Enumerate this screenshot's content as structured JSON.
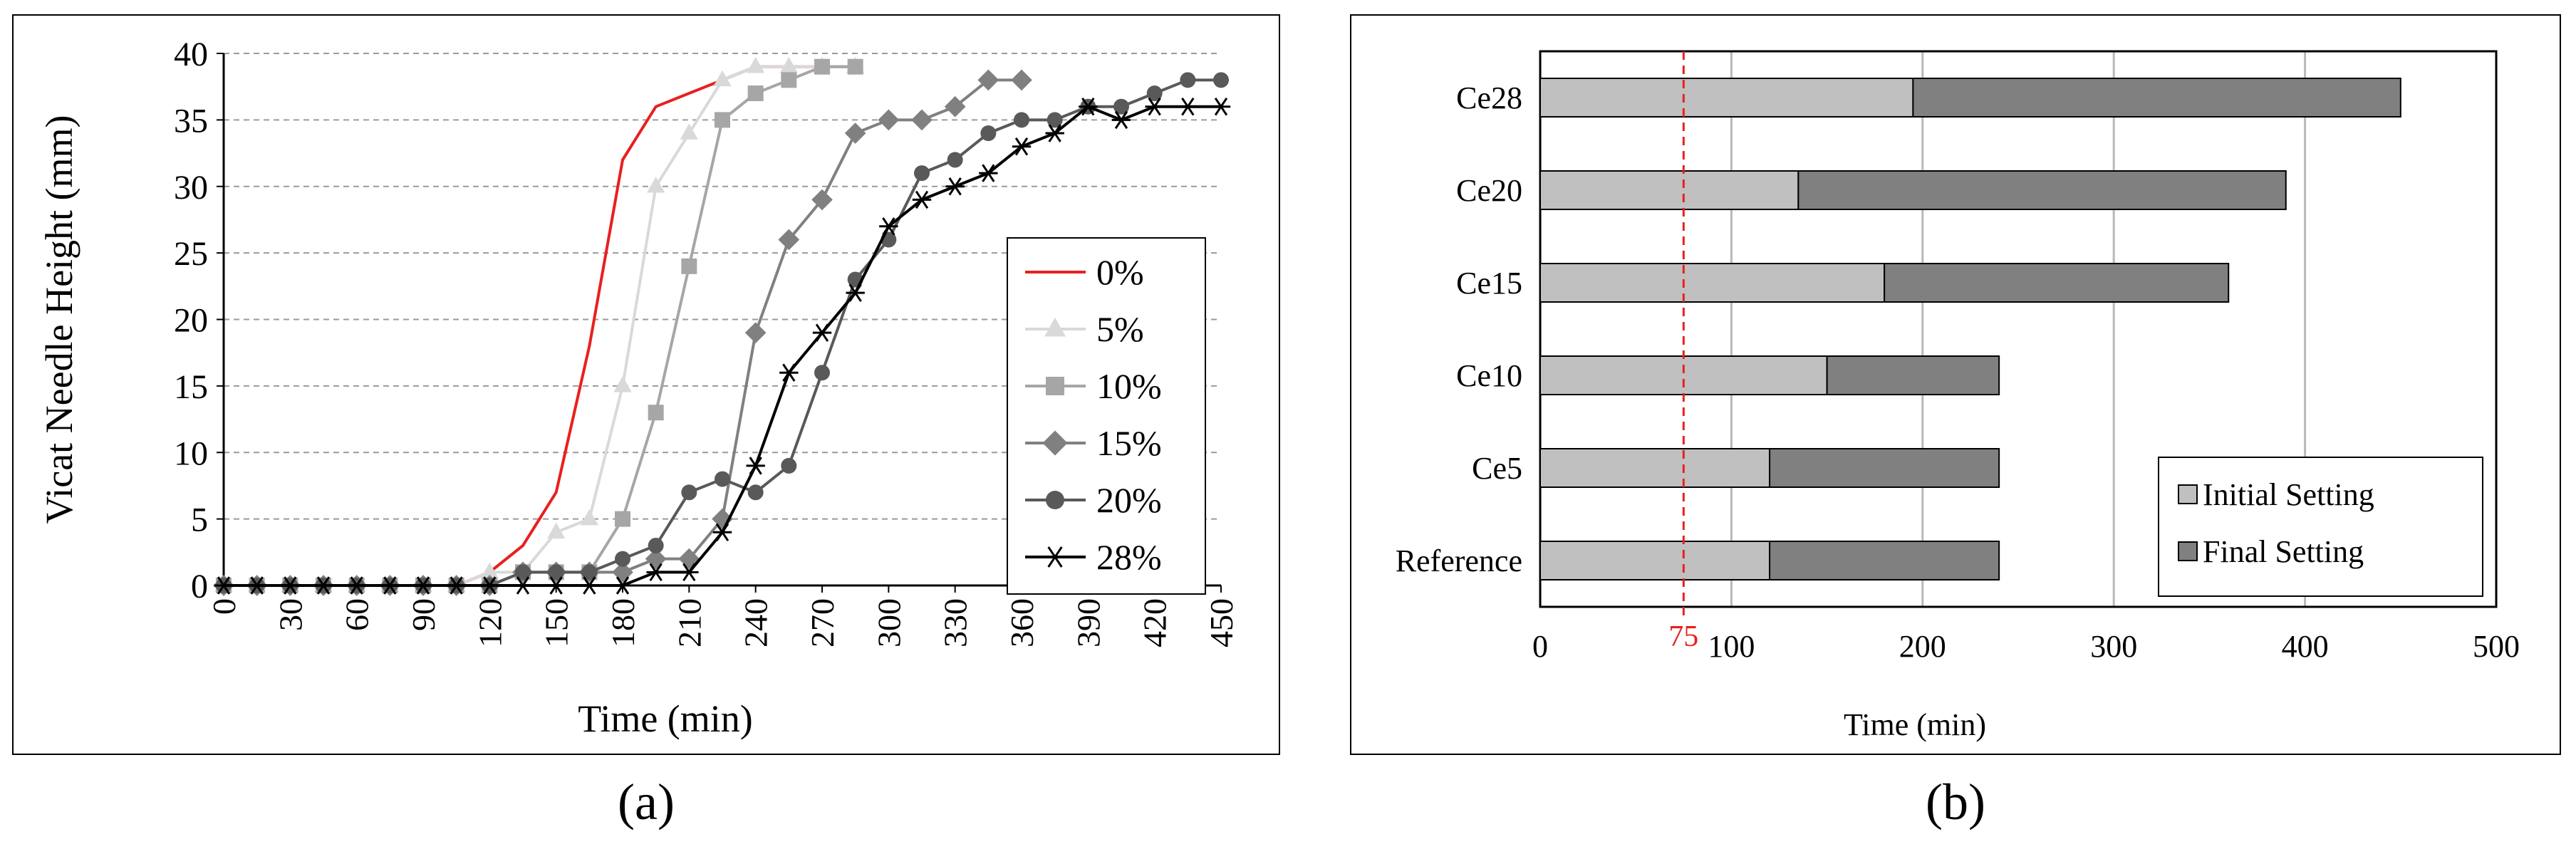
{
  "chart_data": [
    {
      "type": "line",
      "panel_label": "(a)",
      "xlabel": "Time (min)",
      "ylabel": "Vicat Needle Height (mm)",
      "xlim": [
        0,
        450
      ],
      "ylim": [
        0,
        40
      ],
      "xticks": [
        0,
        30,
        60,
        90,
        120,
        150,
        180,
        210,
        240,
        270,
        300,
        330,
        360,
        390,
        420,
        450
      ],
      "yticks": [
        0,
        5,
        10,
        15,
        20,
        25,
        30,
        35,
        40
      ],
      "legend_position": "right",
      "series": [
        {
          "name": "0%",
          "color": "#e8201e",
          "marker": "line",
          "x": [
            0,
            15,
            30,
            45,
            60,
            75,
            90,
            105,
            120,
            135,
            150,
            165,
            180,
            195,
            210,
            225,
            240,
            255,
            270,
            285
          ],
          "y": [
            0,
            0,
            0,
            0,
            0,
            0,
            0,
            0,
            1,
            3,
            7,
            18,
            32,
            36,
            37,
            38,
            39,
            39,
            39,
            39
          ]
        },
        {
          "name": "5%",
          "color": "#d9d9d9",
          "marker": "triangle",
          "x": [
            0,
            15,
            30,
            45,
            60,
            75,
            90,
            105,
            120,
            135,
            150,
            165,
            180,
            195,
            210,
            225,
            240,
            255,
            270,
            285
          ],
          "y": [
            0,
            0,
            0,
            0,
            0,
            0,
            0,
            0,
            1,
            1,
            4,
            5,
            15,
            30,
            34,
            38,
            39,
            39,
            39,
            39
          ]
        },
        {
          "name": "10%",
          "color": "#a6a6a6",
          "marker": "square",
          "x": [
            0,
            15,
            30,
            45,
            60,
            75,
            90,
            105,
            120,
            135,
            150,
            165,
            180,
            195,
            210,
            225,
            240,
            255,
            270,
            285
          ],
          "y": [
            0,
            0,
            0,
            0,
            0,
            0,
            0,
            0,
            0,
            1,
            1,
            1,
            5,
            13,
            24,
            35,
            37,
            38,
            39,
            39
          ]
        },
        {
          "name": "15%",
          "color": "#808080",
          "marker": "diamond",
          "x": [
            0,
            15,
            30,
            45,
            60,
            75,
            90,
            105,
            120,
            135,
            150,
            165,
            180,
            195,
            210,
            225,
            240,
            255,
            270,
            285,
            300,
            315,
            330,
            345,
            360
          ],
          "y": [
            0,
            0,
            0,
            0,
            0,
            0,
            0,
            0,
            0,
            1,
            1,
            1,
            1,
            2,
            2,
            5,
            19,
            26,
            29,
            34,
            35,
            35,
            36,
            38,
            38
          ]
        },
        {
          "name": "20%",
          "color": "#595959",
          "marker": "circle",
          "x": [
            0,
            15,
            30,
            45,
            60,
            75,
            90,
            105,
            120,
            135,
            150,
            165,
            180,
            195,
            210,
            225,
            240,
            255,
            270,
            285,
            300,
            315,
            330,
            345,
            360,
            375,
            390,
            405,
            420,
            435,
            450
          ],
          "y": [
            0,
            0,
            0,
            0,
            0,
            0,
            0,
            0,
            0,
            1,
            1,
            1,
            2,
            3,
            7,
            8,
            7,
            9,
            16,
            23,
            26,
            31,
            32,
            34,
            35,
            35,
            36,
            36,
            37,
            38,
            38
          ]
        },
        {
          "name": "28%",
          "color": "#000000",
          "marker": "star",
          "x": [
            0,
            15,
            30,
            45,
            60,
            75,
            90,
            105,
            120,
            135,
            150,
            165,
            180,
            195,
            210,
            225,
            240,
            255,
            270,
            285,
            300,
            315,
            330,
            345,
            360,
            375,
            390,
            405,
            420,
            435,
            450
          ],
          "y": [
            0,
            0,
            0,
            0,
            0,
            0,
            0,
            0,
            0,
            0,
            0,
            0,
            0,
            1,
            1,
            4,
            9,
            16,
            19,
            22,
            27,
            29,
            30,
            31,
            33,
            34,
            36,
            35,
            36,
            36,
            36
          ]
        }
      ]
    },
    {
      "type": "bar",
      "orientation": "horizontal",
      "stacked": true,
      "panel_label": "(b)",
      "xlabel": "Time  (min)",
      "ylabel": "",
      "xlim": [
        0,
        500
      ],
      "xticks": [
        0,
        100,
        200,
        300,
        400,
        500
      ],
      "categories": [
        "Ce28",
        "Ce20",
        "Ce15",
        "Ce10",
        "Ce5",
        "Reference"
      ],
      "series": [
        {
          "name": "Initial Setting",
          "color": "#c0c0c0",
          "values": [
            195,
            135,
            180,
            150,
            120,
            120
          ]
        },
        {
          "name": "Final Setting",
          "color": "#808080",
          "values": [
            255,
            255,
            180,
            90,
            120,
            120
          ]
        }
      ],
      "reference_line": {
        "value": 75,
        "label": "75",
        "color": "#e8201e"
      },
      "legend_position": "bottom-right"
    }
  ]
}
